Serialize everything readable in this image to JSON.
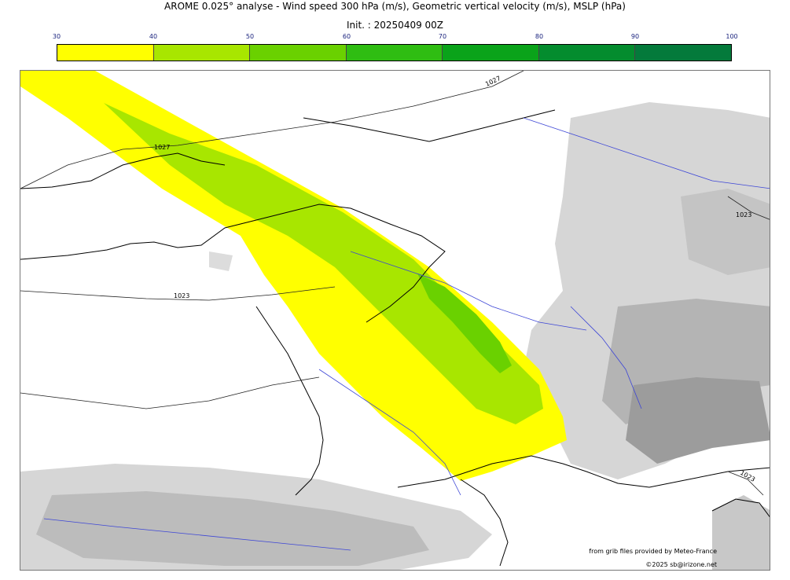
{
  "header": {
    "title": "AROME 0.025° analyse - Wind speed 300 hPa (m/s), Geometric vertical velocity (m/s), MSLP (hPa)",
    "init": "Init. : 20250409 00Z"
  },
  "colorbar": {
    "ticks": [
      "30",
      "40",
      "50",
      "60",
      "70",
      "80",
      "90",
      "100"
    ],
    "colors": [
      "#ffff00",
      "#a8e600",
      "#6ad100",
      "#2fbd12",
      "#0aa31a",
      "#048c2e",
      "#047a3b",
      "#0a7250"
    ]
  },
  "map": {
    "isobar_labels": [
      "1027",
      "1027",
      "1023",
      "1023",
      "1023"
    ]
  },
  "credits": {
    "source": "from grib files provided by Meteo-France",
    "copyright": "©2025 sb@irizone.net"
  }
}
